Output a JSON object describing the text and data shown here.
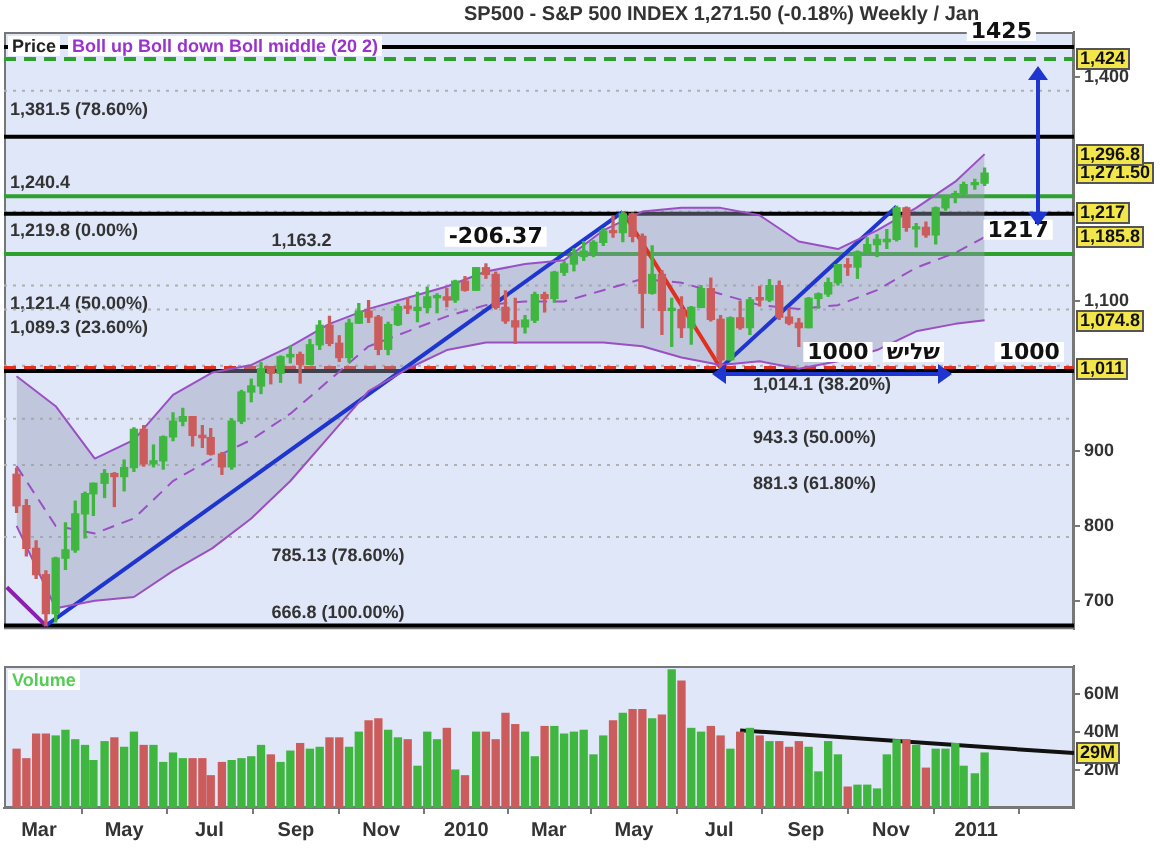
{
  "chart_data": [
    {
      "type": "candlestick",
      "title": "SP500 - S&P 500 INDEX   1,271.50 (-0.18%)   Weekly / Jan",
      "subtitle": "Boll up Boll down Boll middle (20 2)",
      "ylabel": "Price",
      "x": [
        "2009-02-13",
        "2009-02-20",
        "2009-02-27",
        "2009-03-06",
        "2009-03-13",
        "2009-03-20",
        "2009-03-27",
        "2009-04-03",
        "2009-04-09",
        "2009-04-17",
        "2009-04-24",
        "2009-05-01",
        "2009-05-08",
        "2009-05-15",
        "2009-05-22",
        "2009-05-29",
        "2009-06-05",
        "2009-06-12",
        "2009-06-19",
        "2009-06-26",
        "2009-07-02",
        "2009-07-10",
        "2009-07-17",
        "2009-07-24",
        "2009-07-31",
        "2009-08-07",
        "2009-08-14",
        "2009-08-21",
        "2009-08-28",
        "2009-09-04",
        "2009-09-11",
        "2009-09-18",
        "2009-09-25",
        "2009-10-02",
        "2009-10-09",
        "2009-10-16",
        "2009-10-23",
        "2009-10-30",
        "2009-11-06",
        "2009-11-13",
        "2009-11-20",
        "2009-11-27",
        "2009-12-04",
        "2009-12-11",
        "2009-12-18",
        "2009-12-24",
        "2009-12-31",
        "2010-01-08",
        "2010-01-15",
        "2010-01-22",
        "2010-01-29",
        "2010-02-05",
        "2010-02-12",
        "2010-02-19",
        "2010-02-26",
        "2010-03-05",
        "2010-03-12",
        "2010-03-19",
        "2010-03-26",
        "2010-04-02",
        "2010-04-09",
        "2010-04-16",
        "2010-04-23",
        "2010-04-30",
        "2010-05-07",
        "2010-05-14",
        "2010-05-21",
        "2010-05-28",
        "2010-06-04",
        "2010-06-11",
        "2010-06-18",
        "2010-06-25",
        "2010-07-02",
        "2010-07-09",
        "2010-07-16",
        "2010-07-23",
        "2010-07-30",
        "2010-08-06",
        "2010-08-13",
        "2010-08-20",
        "2010-08-27",
        "2010-09-03",
        "2010-09-10",
        "2010-09-17",
        "2010-09-24",
        "2010-10-01",
        "2010-10-08",
        "2010-10-15",
        "2010-10-22",
        "2010-10-29",
        "2010-11-05",
        "2010-11-12",
        "2010-11-19",
        "2010-11-26",
        "2010-12-03",
        "2010-12-10",
        "2010-12-17",
        "2010-12-23",
        "2010-12-31",
        "2011-01-07"
      ],
      "ohlc": [
        [
          869,
          877,
          818,
          827
        ],
        [
          827,
          835,
          760,
          770
        ],
        [
          770,
          780,
          730,
          735
        ],
        [
          735,
          740,
          666.8,
          683
        ],
        [
          683,
          758,
          672,
          757
        ],
        [
          757,
          804,
          742,
          768
        ],
        [
          768,
          833,
          765,
          816
        ],
        [
          816,
          845,
          784,
          843
        ],
        [
          843,
          857,
          814,
          857
        ],
        [
          857,
          875,
          838,
          870
        ],
        [
          870,
          871,
          826,
          866
        ],
        [
          866,
          888,
          847,
          878
        ],
        [
          878,
          931,
          873,
          929
        ],
        [
          929,
          934,
          880,
          883
        ],
        [
          883,
          908,
          879,
          887
        ],
        [
          887,
          920,
          876,
          919
        ],
        [
          919,
          951,
          914,
          940
        ],
        [
          940,
          957,
          934,
          946
        ],
        [
          946,
          946,
          907,
          921
        ],
        [
          921,
          934,
          905,
          918
        ],
        [
          918,
          930,
          895,
          896
        ],
        [
          896,
          898,
          869,
          879
        ],
        [
          879,
          943,
          876,
          940
        ],
        [
          940,
          981,
          937,
          979
        ],
        [
          979,
          996,
          966,
          987
        ],
        [
          987,
          1018,
          977,
          1010
        ],
        [
          1010,
          1012,
          990,
          1004
        ],
        [
          1004,
          1027,
          992,
          1026
        ],
        [
          1026,
          1040,
          1018,
          1029
        ],
        [
          1029,
          1032,
          991,
          1016
        ],
        [
          1016,
          1049,
          1016,
          1042
        ],
        [
          1042,
          1074,
          1036,
          1068
        ],
        [
          1068,
          1080,
          1041,
          1044
        ],
        [
          1044,
          1054,
          1020,
          1025
        ],
        [
          1025,
          1076,
          1019,
          1071
        ],
        [
          1071,
          1097,
          1071,
          1087
        ],
        [
          1087,
          1101,
          1072,
          1079
        ],
        [
          1079,
          1081,
          1029,
          1036
        ],
        [
          1036,
          1072,
          1029,
          1069
        ],
        [
          1069,
          1096,
          1068,
          1093
        ],
        [
          1093,
          1105,
          1084,
          1091
        ],
        [
          1088,
          1112,
          1073,
          1092
        ],
        [
          1092,
          1119,
          1085,
          1106
        ],
        [
          1105,
          1110,
          1085,
          1106
        ],
        [
          1106,
          1117,
          1093,
          1102
        ],
        [
          1102,
          1128,
          1099,
          1127
        ],
        [
          1127,
          1133,
          1114,
          1115
        ],
        [
          1115,
          1145,
          1115,
          1145
        ],
        [
          1145,
          1150,
          1131,
          1136
        ],
        [
          1136,
          1139,
          1090,
          1092
        ],
        [
          1092,
          1114,
          1071,
          1074
        ],
        [
          1074,
          1104,
          1044,
          1066
        ],
        [
          1066,
          1081,
          1058,
          1075
        ],
        [
          1075,
          1112,
          1072,
          1109
        ],
        [
          1109,
          1112,
          1086,
          1104
        ],
        [
          1104,
          1140,
          1099,
          1139
        ],
        [
          1139,
          1153,
          1135,
          1150
        ],
        [
          1150,
          1170,
          1141,
          1160
        ],
        [
          1160,
          1180,
          1155,
          1167
        ],
        [
          1167,
          1181,
          1160,
          1179
        ],
        [
          1179,
          1197,
          1175,
          1194
        ],
        [
          1194,
          1214,
          1186,
          1192
        ],
        [
          1192,
          1219.8,
          1180,
          1217
        ],
        [
          1217,
          1218,
          1180,
          1187
        ],
        [
          1187,
          1190,
          1065,
          1111
        ],
        [
          1111,
          1174,
          1110,
          1136
        ],
        [
          1136,
          1141,
          1056,
          1088
        ],
        [
          1088,
          1104,
          1040,
          1089
        ],
        [
          1089,
          1106,
          1052,
          1065
        ],
        [
          1065,
          1093,
          1043,
          1092
        ],
        [
          1092,
          1121,
          1092,
          1117
        ],
        [
          1117,
          1131,
          1074,
          1076
        ],
        [
          1076,
          1081,
          1011,
          1022
        ],
        [
          1022,
          1079,
          1022,
          1078
        ],
        [
          1078,
          1100,
          1063,
          1065
        ],
        [
          1065,
          1105,
          1056,
          1102
        ],
        [
          1105,
          1120,
          1094,
          1102
        ],
        [
          1102,
          1129,
          1100,
          1121
        ],
        [
          1121,
          1127,
          1076,
          1079
        ],
        [
          1079,
          1090,
          1069,
          1071
        ],
        [
          1071,
          1077,
          1040,
          1065
        ],
        [
          1065,
          1105,
          1065,
          1104
        ],
        [
          1104,
          1111,
          1091,
          1110
        ],
        [
          1110,
          1131,
          1107,
          1125
        ],
        [
          1125,
          1149,
          1122,
          1149
        ],
        [
          1149,
          1157,
          1135,
          1146
        ],
        [
          1146,
          1167,
          1131,
          1166
        ],
        [
          1166,
          1185,
          1165,
          1176
        ],
        [
          1176,
          1189,
          1160,
          1183
        ],
        [
          1180,
          1196,
          1171,
          1183
        ],
        [
          1183,
          1227,
          1181,
          1225
        ],
        [
          1225,
          1226,
          1194,
          1199
        ],
        [
          1197,
          1204,
          1173,
          1199
        ],
        [
          1199,
          1206,
          1186,
          1189
        ],
        [
          1189,
          1226,
          1177,
          1225
        ],
        [
          1225,
          1241,
          1222,
          1240
        ],
        [
          1240,
          1247,
          1232,
          1244
        ],
        [
          1244,
          1259,
          1243,
          1256
        ],
        [
          1256,
          1263,
          1250,
          1258
        ],
        [
          1258,
          1278,
          1255,
          1271.5
        ]
      ],
      "colors": [
        "#cc5c5c",
        "#cc5c5c",
        "#cc5c5c",
        "#cc5c5c",
        "#3fb63f",
        "#3fb63f",
        "#3fb63f",
        "#3fb63f",
        "#3fb63f",
        "#3fb63f",
        "#cc5c5c",
        "#3fb63f",
        "#3fb63f",
        "#cc5c5c",
        "#3fb63f",
        "#3fb63f",
        "#3fb63f",
        "#3fb63f",
        "#cc5c5c",
        "#cc5c5c",
        "#cc5c5c",
        "#cc5c5c",
        "#3fb63f",
        "#3fb63f",
        "#3fb63f",
        "#3fb63f",
        "#cc5c5c",
        "#3fb63f",
        "#3fb63f",
        "#cc5c5c",
        "#3fb63f",
        "#3fb63f",
        "#cc5c5c",
        "#cc5c5c",
        "#3fb63f",
        "#3fb63f",
        "#cc5c5c",
        "#cc5c5c",
        "#3fb63f",
        "#3fb63f",
        "#cc5c5c",
        "#3fb63f",
        "#3fb63f",
        "#3fb63f",
        "#cc5c5c",
        "#3fb63f",
        "#cc5c5c",
        "#3fb63f",
        "#cc5c5c",
        "#cc5c5c",
        "#cc5c5c",
        "#cc5c5c",
        "#3fb63f",
        "#3fb63f",
        "#cc5c5c",
        "#3fb63f",
        "#3fb63f",
        "#3fb63f",
        "#3fb63f",
        "#3fb63f",
        "#3fb63f",
        "#cc5c5c",
        "#3fb63f",
        "#cc5c5c",
        "#cc5c5c",
        "#3fb63f",
        "#cc5c5c",
        "#3fb63f",
        "#cc5c5c",
        "#3fb63f",
        "#3fb63f",
        "#cc5c5c",
        "#cc5c5c",
        "#3fb63f",
        "#cc5c5c",
        "#3fb63f",
        "#cc5c5c",
        "#3fb63f",
        "#cc5c5c",
        "#cc5c5c",
        "#cc5c5c",
        "#3fb63f",
        "#3fb63f",
        "#3fb63f",
        "#3fb63f",
        "#cc5c5c",
        "#3fb63f",
        "#3fb63f",
        "#3fb63f",
        "#3fb63f",
        "#3fb63f",
        "#cc5c5c",
        "#3fb63f",
        "#cc5c5c",
        "#3fb63f",
        "#3fb63f",
        "#3fb63f",
        "#3fb63f",
        "#3fb63f",
        "#3fb63f"
      ],
      "value_labels": [
        null,
        null,
        null,
        null,
        null,
        null,
        null,
        null,
        null,
        null,
        null,
        null,
        null,
        null,
        null,
        null,
        null,
        null,
        null,
        null,
        null,
        null,
        null,
        null,
        null,
        null,
        null,
        null,
        null,
        null,
        null,
        null,
        null,
        null,
        null,
        null,
        null,
        null,
        null,
        null,
        null,
        null,
        null,
        null,
        null,
        null,
        null,
        null,
        null,
        null,
        null,
        null,
        null,
        null,
        null,
        null,
        null,
        null,
        null,
        null,
        null,
        null,
        null,
        null,
        null,
        null,
        null,
        null,
        null,
        null,
        null,
        null,
        null,
        null,
        null,
        null,
        null,
        null,
        null,
        null,
        null,
        null,
        null,
        null,
        null,
        null,
        null,
        null,
        null,
        null,
        null,
        null,
        null,
        null,
        null,
        null,
        null,
        null,
        null,
        "1,271.50"
      ],
      "series": [
        {
          "type": "line",
          "color": "#9a4fc4",
          "x": [
            "2009-02-13",
            "2009-03-13",
            "2009-04-10",
            "2009-05-08",
            "2009-06-05",
            "2009-07-03",
            "2009-07-31",
            "2009-08-28",
            "2009-09-25",
            "2009-10-23",
            "2009-11-20",
            "2009-12-18",
            "2010-01-15",
            "2010-02-12",
            "2010-03-12",
            "2010-04-09",
            "2010-05-07",
            "2010-06-04",
            "2010-07-02",
            "2010-07-30",
            "2010-08-27",
            "2010-09-24",
            "2010-10-22",
            "2010-11-19",
            "2010-12-17",
            "2011-01-07"
          ],
          "values": [
            1000,
            960,
            890,
            915,
            975,
            1005,
            1015,
            1040,
            1070,
            1090,
            1105,
            1120,
            1140,
            1150,
            1155,
            1195,
            1220,
            1225,
            1225,
            1215,
            1180,
            1170,
            1195,
            1225,
            1260,
            1296.8
          ]
        },
        {
          "type": "line",
          "color": "#9a4fc4",
          "x": [
            "2009-02-13",
            "2009-03-13",
            "2009-04-10",
            "2009-05-08",
            "2009-06-05",
            "2009-07-03",
            "2009-07-31",
            "2009-08-28",
            "2009-09-25",
            "2009-10-23",
            "2009-11-20",
            "2009-12-18",
            "2010-01-15",
            "2010-02-12",
            "2010-03-12",
            "2010-04-09",
            "2010-05-07",
            "2010-06-04",
            "2010-07-02",
            "2010-07-30",
            "2010-08-27",
            "2010-09-24",
            "2010-10-22",
            "2010-11-19",
            "2010-12-17",
            "2011-01-07"
          ],
          "values": [
            800,
            690,
            700,
            705,
            740,
            770,
            810,
            860,
            920,
            980,
            1010,
            1035,
            1045,
            1045,
            1045,
            1045,
            1040,
            1025,
            1015,
            1020,
            1010,
            1020,
            1035,
            1060,
            1070,
            1074.8
          ]
        },
        {
          "type": "line",
          "color": "#9a4fc4",
          "line_style": "dashed",
          "x": [
            "2009-02-13",
            "2009-03-13",
            "2009-04-10",
            "2009-05-08",
            "2009-06-05",
            "2009-07-03",
            "2009-07-31",
            "2009-08-28",
            "2009-09-25",
            "2009-10-23",
            "2009-11-20",
            "2009-12-18",
            "2010-01-15",
            "2010-02-12",
            "2010-03-12",
            "2010-04-09",
            "2010-05-07",
            "2010-06-04",
            "2010-07-02",
            "2010-07-30",
            "2010-08-27",
            "2010-09-24",
            "2010-10-22",
            "2010-11-19",
            "2010-12-17",
            "2011-01-07"
          ],
          "values": [
            880,
            800,
            790,
            810,
            860,
            890,
            915,
            950,
            995,
            1040,
            1060,
            1080,
            1095,
            1100,
            1100,
            1115,
            1130,
            1125,
            1110,
            1095,
            1090,
            1095,
            1115,
            1145,
            1165,
            1185.8
          ],
          "upper": [
            1000,
            960,
            890,
            915,
            975,
            1005,
            1015,
            1040,
            1070,
            1090,
            1105,
            1120,
            1140,
            1150,
            1155,
            1195,
            1220,
            1225,
            1225,
            1215,
            1180,
            1170,
            1195,
            1225,
            1260,
            1296.8
          ],
          "lower": [
            800,
            690,
            700,
            705,
            740,
            770,
            810,
            860,
            920,
            980,
            1010,
            1035,
            1045,
            1045,
            1045,
            1045,
            1040,
            1025,
            1015,
            1020,
            1010,
            1020,
            1035,
            1060,
            1070,
            1074.8
          ]
        },
        {
          "type": "line",
          "color": "#1f35d0",
          "x": [
            "2009-03-06",
            "2010-04-23"
          ],
          "values": [
            666.8,
            1219.8
          ]
        },
        {
          "type": "line",
          "color": "#e0301e",
          "x": [
            "2010-04-23",
            "2010-07-02"
          ],
          "values": [
            1219.8,
            1011
          ]
        },
        {
          "type": "line",
          "color": "#1f35d0",
          "x": [
            "2010-07-02",
            "2010-11-05"
          ],
          "values": [
            1011,
            1227
          ]
        },
        {
          "type": "line",
          "color": "#8a1fb0",
          "x": [
            "2009-02-06",
            "2009-03-06"
          ],
          "values": [
            718,
            666.8
          ]
        }
      ],
      "xlim": [
        "2009-02-04",
        "2011-03-12"
      ],
      "ylim": [
        662,
        1460
      ],
      "yticks": [
        700,
        800,
        900,
        {
          "value": 1100,
          "label": "1,100"
        },
        {
          "value": 1400,
          "label": "1,400"
        }
      ],
      "tick_labels": "y",
      "ref_lines": [
        {
          "axis": "y",
          "value": 1440,
          "label": null,
          "color": "#000000",
          "line_style": "solid"
        },
        {
          "axis": "y",
          "value": 1424,
          "label": null,
          "color": "#2ea02e",
          "line_style": "dashed"
        },
        {
          "axis": "y",
          "value": 1381.5,
          "label": "1,381.5 (78.60%)",
          "color": "#b0b0b0",
          "line_style": "dotted"
        },
        {
          "axis": "y",
          "value": 1320,
          "label": null,
          "color": "#000000",
          "line_style": "solid"
        },
        {
          "axis": "y",
          "value": 1240.4,
          "label": "1,240.4",
          "color": "#2ea02e",
          "line_style": "solid"
        },
        {
          "axis": "y",
          "value": 1219.8,
          "label": "1,219.8 (0.00%)",
          "color": "#b0b0b0",
          "line_style": "dotted"
        },
        {
          "axis": "y",
          "value": 1217,
          "label": null,
          "color": "#000000",
          "line_style": "solid"
        },
        {
          "axis": "y",
          "value": 1163.2,
          "label": "1,163.2",
          "color": "#2ea02e",
          "line_style": "solid"
        },
        {
          "axis": "y",
          "value": 1121.4,
          "label": "1,121.4 (50.00%)",
          "color": "#b0b0b0",
          "line_style": "dotted"
        },
        {
          "axis": "y",
          "value": 1089.3,
          "label": "1,089.3 (23.60%)",
          "color": "#b0b0b0",
          "line_style": "dotted"
        },
        {
          "axis": "y",
          "value": 1014.1,
          "label": "1,014.1 (38.20%)",
          "color": "#b0b0b0",
          "line_style": "dotted"
        },
        {
          "axis": "y",
          "value": 1011,
          "label": null,
          "color": "#e0301e",
          "line_style": "dashed"
        },
        {
          "axis": "y",
          "value": 1007,
          "label": null,
          "color": "#000000",
          "line_style": "solid"
        },
        {
          "axis": "y",
          "value": 943.3,
          "label": "943.3 (50.00%)",
          "color": "#b0b0b0",
          "line_style": "dotted"
        },
        {
          "axis": "y",
          "value": 881.3,
          "label": "881.3 (61.80%)",
          "color": "#b0b0b0",
          "line_style": "dotted"
        },
        {
          "axis": "y",
          "value": 785.13,
          "label": "785.13 (78.60%)",
          "color": "#b0b0b0",
          "line_style": "dotted"
        },
        {
          "axis": "y",
          "value": 666.8,
          "label": "666.8 (100.00%)",
          "color": "#000000",
          "line_style": "solid"
        }
      ],
      "annotations": [
        {
          "text": "-206.37",
          "x": "2010-01-22",
          "y": 1165
        },
        {
          "text": "1425",
          "x": "2011-01-19",
          "y": 1440
        },
        {
          "text": "1217",
          "x": "2011-01-31",
          "y": 1217
        },
        {
          "text": "1000",
          "x": "2010-09-24",
          "y": 1011
        },
        {
          "text": "שליש",
          "x": "2010-11-17",
          "y": 1011
        },
        {
          "text": "1000",
          "x": "2011-02-08",
          "y": 1011
        },
        {
          "text": "1,424",
          "y": 1424
        },
        {
          "text": "1,296.8",
          "y": 1296.8
        },
        {
          "text": "1,217",
          "y": 1217
        },
        {
          "text": "1,185.8",
          "y": 1185.8
        },
        {
          "text": "1,074.8",
          "y": 1074.8
        },
        {
          "text": "1,011",
          "y": 1011
        }
      ]
    },
    {
      "type": "bar",
      "ylabel": "Volume",
      "x": [
        "2009-02-13",
        "2009-02-20",
        "2009-02-27",
        "2009-03-06",
        "2009-03-13",
        "2009-03-20",
        "2009-03-27",
        "2009-04-03",
        "2009-04-09",
        "2009-04-17",
        "2009-04-24",
        "2009-05-01",
        "2009-05-08",
        "2009-05-15",
        "2009-05-22",
        "2009-05-29",
        "2009-06-05",
        "2009-06-12",
        "2009-06-19",
        "2009-06-26",
        "2009-07-02",
        "2009-07-10",
        "2009-07-17",
        "2009-07-24",
        "2009-07-31",
        "2009-08-07",
        "2009-08-14",
        "2009-08-21",
        "2009-08-28",
        "2009-09-04",
        "2009-09-11",
        "2009-09-18",
        "2009-09-25",
        "2009-10-02",
        "2009-10-09",
        "2009-10-16",
        "2009-10-23",
        "2009-10-30",
        "2009-11-06",
        "2009-11-13",
        "2009-11-20",
        "2009-11-27",
        "2009-12-04",
        "2009-12-11",
        "2009-12-18",
        "2009-12-24",
        "2009-12-31",
        "2010-01-08",
        "2010-01-15",
        "2010-01-22",
        "2010-01-29",
        "2010-02-05",
        "2010-02-12",
        "2010-02-19",
        "2010-02-26",
        "2010-03-05",
        "2010-03-12",
        "2010-03-19",
        "2010-03-26",
        "2010-04-02",
        "2010-04-09",
        "2010-04-16",
        "2010-04-23",
        "2010-04-30",
        "2010-05-07",
        "2010-05-14",
        "2010-05-21",
        "2010-05-28",
        "2010-06-04",
        "2010-06-11",
        "2010-06-18",
        "2010-06-25",
        "2010-07-02",
        "2010-07-09",
        "2010-07-16",
        "2010-07-23",
        "2010-07-30",
        "2010-08-06",
        "2010-08-13",
        "2010-08-20",
        "2010-08-27",
        "2010-09-03",
        "2010-09-10",
        "2010-09-17",
        "2010-09-24",
        "2010-10-01",
        "2010-10-08",
        "2010-10-15",
        "2010-10-22",
        "2010-10-29",
        "2010-11-05",
        "2010-11-12",
        "2010-11-19",
        "2010-11-26",
        "2010-12-03",
        "2010-12-10",
        "2010-12-17",
        "2010-12-23",
        "2010-12-31",
        "2011-01-07"
      ],
      "series": [
        {
          "values": [
            31,
            26,
            39,
            39,
            38,
            41,
            36,
            33,
            25,
            35,
            37,
            32,
            40,
            33,
            33,
            24,
            29,
            26,
            26,
            26,
            17,
            24,
            25,
            26,
            27,
            33,
            28,
            24,
            30,
            34,
            31,
            32,
            37,
            37,
            32,
            40,
            46,
            47,
            41,
            37,
            36,
            22,
            40,
            36,
            42,
            20,
            17,
            40,
            40,
            36,
            50,
            44,
            40,
            27,
            43,
            43,
            39,
            40,
            41,
            28,
            38,
            46,
            50,
            52,
            52,
            47,
            49,
            73,
            67,
            42,
            40,
            43,
            38,
            31,
            40,
            42,
            38,
            35,
            35,
            32,
            35,
            32,
            19,
            35,
            28,
            11,
            12,
            12,
            10,
            28,
            36,
            36,
            33,
            21,
            31,
            31,
            34,
            22,
            18,
            29
          ],
          "colors": [
            "#cc5c5c",
            "#cc5c5c",
            "#cc5c5c",
            "#cc5c5c",
            "#3fb63f",
            "#3fb63f",
            "#3fb63f",
            "#3fb63f",
            "#3fb63f",
            "#3fb63f",
            "#cc5c5c",
            "#3fb63f",
            "#3fb63f",
            "#cc5c5c",
            "#3fb63f",
            "#3fb63f",
            "#3fb63f",
            "#3fb63f",
            "#cc5c5c",
            "#cc5c5c",
            "#cc5c5c",
            "#cc5c5c",
            "#3fb63f",
            "#3fb63f",
            "#3fb63f",
            "#3fb63f",
            "#cc5c5c",
            "#3fb63f",
            "#3fb63f",
            "#cc5c5c",
            "#3fb63f",
            "#3fb63f",
            "#cc5c5c",
            "#cc5c5c",
            "#3fb63f",
            "#3fb63f",
            "#cc5c5c",
            "#cc5c5c",
            "#3fb63f",
            "#3fb63f",
            "#cc5c5c",
            "#3fb63f",
            "#3fb63f",
            "#3fb63f",
            "#cc5c5c",
            "#3fb63f",
            "#cc5c5c",
            "#3fb63f",
            "#cc5c5c",
            "#cc5c5c",
            "#cc5c5c",
            "#cc5c5c",
            "#3fb63f",
            "#3fb63f",
            "#cc5c5c",
            "#3fb63f",
            "#3fb63f",
            "#3fb63f",
            "#3fb63f",
            "#3fb63f",
            "#3fb63f",
            "#cc5c5c",
            "#3fb63f",
            "#cc5c5c",
            "#cc5c5c",
            "#3fb63f",
            "#cc5c5c",
            "#3fb63f",
            "#cc5c5c",
            "#3fb63f",
            "#3fb63f",
            "#cc5c5c",
            "#cc5c5c",
            "#3fb63f",
            "#cc5c5c",
            "#3fb63f",
            "#cc5c5c",
            "#3fb63f",
            "#cc5c5c",
            "#cc5c5c",
            "#cc5c5c",
            "#3fb63f",
            "#3fb63f",
            "#3fb63f",
            "#3fb63f",
            "#cc5c5c",
            "#3fb63f",
            "#3fb63f",
            "#3fb63f",
            "#3fb63f",
            "#3fb63f",
            "#cc5c5c",
            "#3fb63f",
            "#cc5c5c",
            "#3fb63f",
            "#3fb63f",
            "#3fb63f",
            "#3fb63f",
            "#3fb63f",
            "#3fb63f"
          ]
        },
        {
          "type": "line",
          "color": "#111111",
          "x": [
            "2010-07-16",
            "2011-03-12"
          ],
          "values": [
            41,
            29
          ]
        }
      ],
      "xlim": [
        "2009-02-04",
        "2011-03-12"
      ],
      "ylim": [
        0,
        75
      ],
      "yticks": [
        {
          "value": 20,
          "label": "20M"
        },
        {
          "value": 40,
          "label": "40M"
        },
        {
          "value": 60,
          "label": "60M"
        }
      ],
      "xticks": [
        {
          "value": "2009-03-01",
          "label": "Mar"
        },
        {
          "value": "2009-05-01",
          "label": "May"
        },
        {
          "value": "2009-07-01",
          "label": "Jul"
        },
        {
          "value": "2009-09-01",
          "label": "Sep"
        },
        {
          "value": "2009-11-01",
          "label": "Nov"
        },
        {
          "value": "2010-01-01",
          "label": "2010"
        },
        {
          "value": "2010-03-01",
          "label": "Mar"
        },
        {
          "value": "2010-05-01",
          "label": "May"
        },
        {
          "value": "2010-07-01",
          "label": "Jul"
        },
        {
          "value": "2010-09-01",
          "label": "Sep"
        },
        {
          "value": "2010-11-01",
          "label": "Nov"
        },
        {
          "value": "2011-01-01",
          "label": "2011"
        }
      ],
      "annotations": [
        {
          "text": "29M",
          "y": 29
        }
      ]
    }
  ]
}
